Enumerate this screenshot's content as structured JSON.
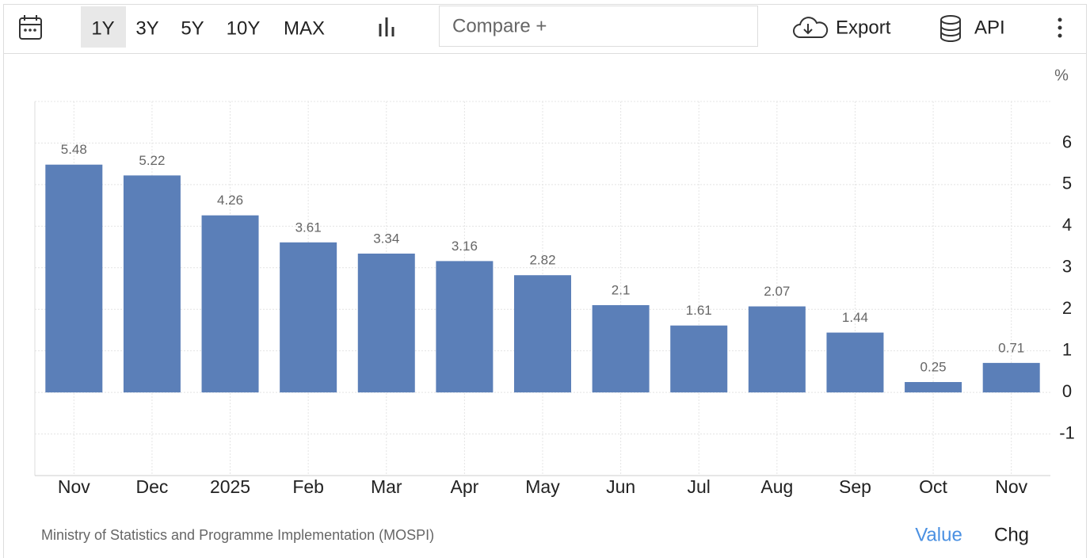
{
  "toolbar": {
    "ranges": [
      "1Y",
      "3Y",
      "5Y",
      "10Y",
      "MAX"
    ],
    "compare": "Compare +",
    "export": "Export",
    "api": "API"
  },
  "chart_data": {
    "type": "bar",
    "unit": "%",
    "categories": [
      "Nov",
      "Dec",
      "2025",
      "Feb",
      "Mar",
      "Apr",
      "May",
      "Jun",
      "Jul",
      "Aug",
      "Sep",
      "Oct",
      "Nov"
    ],
    "values": [
      5.48,
      5.22,
      4.26,
      3.61,
      3.34,
      3.16,
      2.82,
      2.1,
      1.61,
      2.07,
      1.44,
      0.25,
      0.71
    ],
    "color": "#5b7fb8",
    "ylim": [
      -2,
      7
    ],
    "yticks": [
      -1,
      0,
      1,
      2,
      3,
      4,
      5,
      6
    ],
    "grid": true
  },
  "footer": {
    "source": "Ministry of Statistics and Programme Implementation (MOSPI)",
    "tabs": [
      "Value",
      "Chg"
    ]
  }
}
